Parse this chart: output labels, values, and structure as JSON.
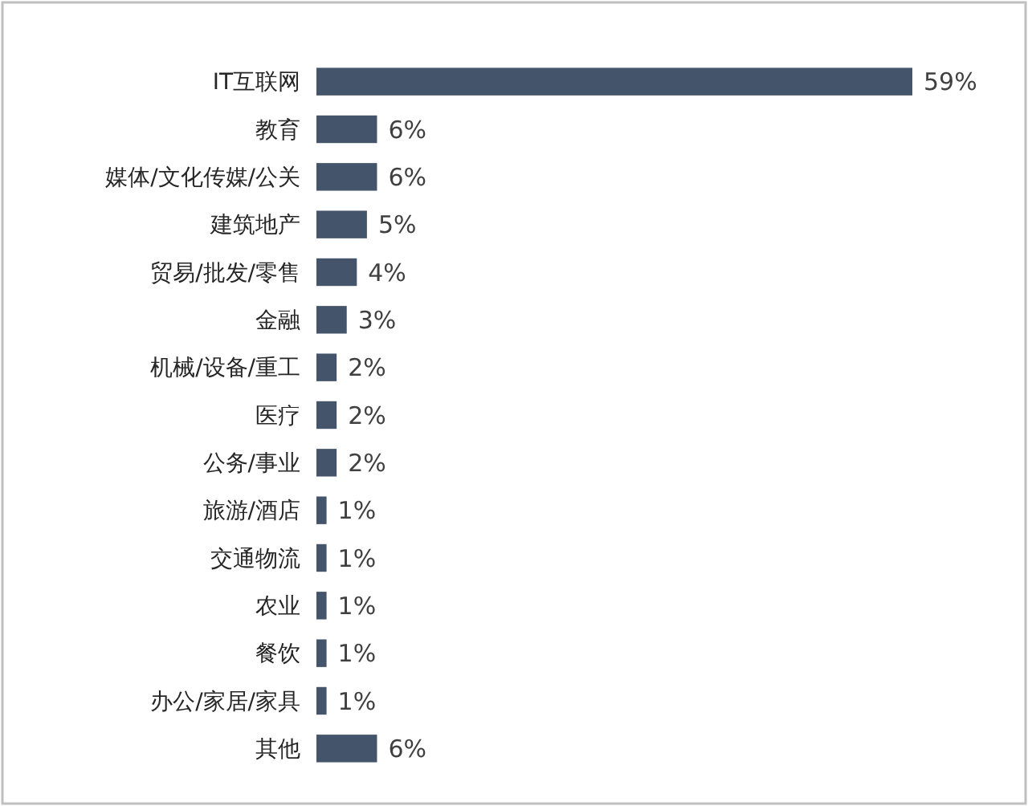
{
  "chart_data": {
    "type": "bar",
    "orientation": "horizontal",
    "categories": [
      "IT互联网",
      "教育",
      "媒体/文化传媒/公关",
      "建筑地产",
      "贸易/批发/零售",
      "金融",
      "机械/设备/重工",
      "医疗",
      "公务/事业",
      "旅游/酒店",
      "交通物流",
      "农业",
      "餐饮",
      "办公/家居/家具",
      "其他"
    ],
    "values": [
      59,
      6,
      6,
      5,
      4,
      3,
      2,
      2,
      2,
      1,
      1,
      1,
      1,
      1,
      6
    ],
    "value_labels": [
      "59%",
      "6%",
      "6%",
      "5%",
      "4%",
      "3%",
      "2%",
      "2%",
      "2%",
      "1%",
      "1%",
      "1%",
      "1%",
      "1%",
      "6%"
    ],
    "color": "#44546a"
  }
}
